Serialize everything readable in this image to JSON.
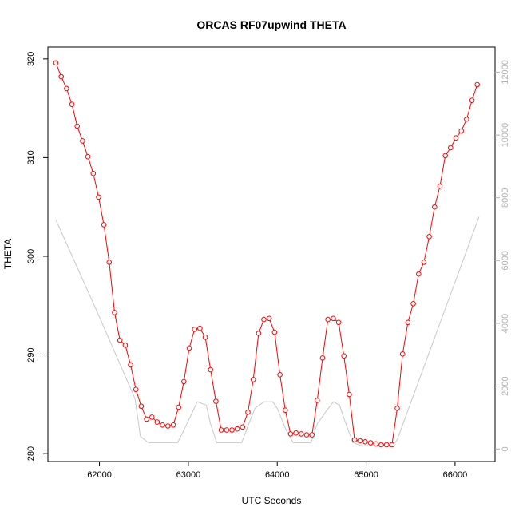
{
  "chart_data": {
    "type": "line",
    "title": "ORCAS RF07upwind THETA",
    "xlabel": "UTC Seconds",
    "ylabel": "THETA",
    "xlim": [
      61420,
      66450
    ],
    "ylim": [
      279.2,
      321.2
    ],
    "y2lim": [
      -400,
      12800
    ],
    "x_ticks": [
      62000,
      63000,
      64000,
      65000,
      66000
    ],
    "y_ticks": [
      280,
      290,
      300,
      310,
      320
    ],
    "y2_ticks": [
      0,
      2000,
      4000,
      6000,
      8000,
      10000,
      12000
    ],
    "grid": false,
    "series": [
      {
        "role": "primary",
        "color": "#ff0000",
        "marker": "open-circle",
        "x": [
          61510,
          61570,
          61630,
          61690,
          61750,
          61810,
          61870,
          61930,
          61990,
          62050,
          62110,
          62170,
          62230,
          62290,
          62350,
          62410,
          62470,
          62530,
          62590,
          62650,
          62710,
          62770,
          62830,
          62890,
          62950,
          63010,
          63070,
          63130,
          63190,
          63250,
          63310,
          63370,
          63430,
          63490,
          63550,
          63610,
          63670,
          63730,
          63790,
          63850,
          63910,
          63970,
          64030,
          64090,
          64150,
          64210,
          64270,
          64330,
          64390,
          64450,
          64510,
          64570,
          64630,
          64690,
          64750,
          64810,
          64870,
          64930,
          64990,
          65050,
          65110,
          65170,
          65230,
          65290,
          65350,
          65410,
          65470,
          65530,
          65590,
          65650,
          65710,
          65770,
          65830,
          65890,
          65950,
          66010,
          66070,
          66130,
          66190,
          66250
        ],
        "y": [
          319.6,
          318.2,
          317.0,
          315.4,
          313.2,
          311.7,
          310.1,
          308.4,
          306.0,
          303.2,
          299.4,
          294.3,
          291.5,
          291.0,
          289.0,
          286.5,
          284.8,
          283.5,
          283.7,
          283.2,
          282.9,
          282.8,
          282.9,
          284.7,
          287.3,
          290.7,
          292.6,
          292.7,
          291.8,
          288.5,
          285.3,
          282.4,
          282.4,
          282.4,
          282.5,
          282.7,
          284.2,
          287.5,
          292.2,
          293.6,
          293.7,
          292.3,
          288.0,
          284.4,
          282.0,
          282.1,
          282.0,
          281.9,
          281.9,
          285.4,
          289.7,
          293.6,
          293.7,
          293.3,
          289.9,
          286.0,
          281.4,
          281.3,
          281.2,
          281.1,
          281.0,
          280.9,
          280.9,
          280.9,
          284.6,
          290.1,
          293.3,
          295.2,
          298.2,
          299.4,
          302.0,
          305.0,
          307.1,
          310.2,
          311.0,
          312.0,
          312.7,
          313.9,
          315.8,
          317.4
        ]
      },
      {
        "role": "secondary-right-axis",
        "color": "#c8c8c8",
        "marker": "none",
        "x": [
          61510,
          62000,
          62400,
          62460,
          62550,
          62800,
          62880,
          62950,
          63050,
          63100,
          63200,
          63250,
          63320,
          63380,
          63600,
          63680,
          63750,
          63850,
          63950,
          64000,
          64100,
          64180,
          64380,
          64450,
          64550,
          64630,
          64700,
          64760,
          64850,
          64950,
          65300,
          65350,
          66270
        ],
        "y": [
          7300,
          4200,
          1600,
          400,
          200,
          200,
          200,
          600,
          1200,
          1500,
          1400,
          800,
          200,
          200,
          200,
          800,
          1300,
          1500,
          1500,
          1300,
          600,
          200,
          200,
          800,
          1200,
          1500,
          1400,
          900,
          200,
          100,
          100,
          300,
          7400
        ]
      }
    ]
  }
}
